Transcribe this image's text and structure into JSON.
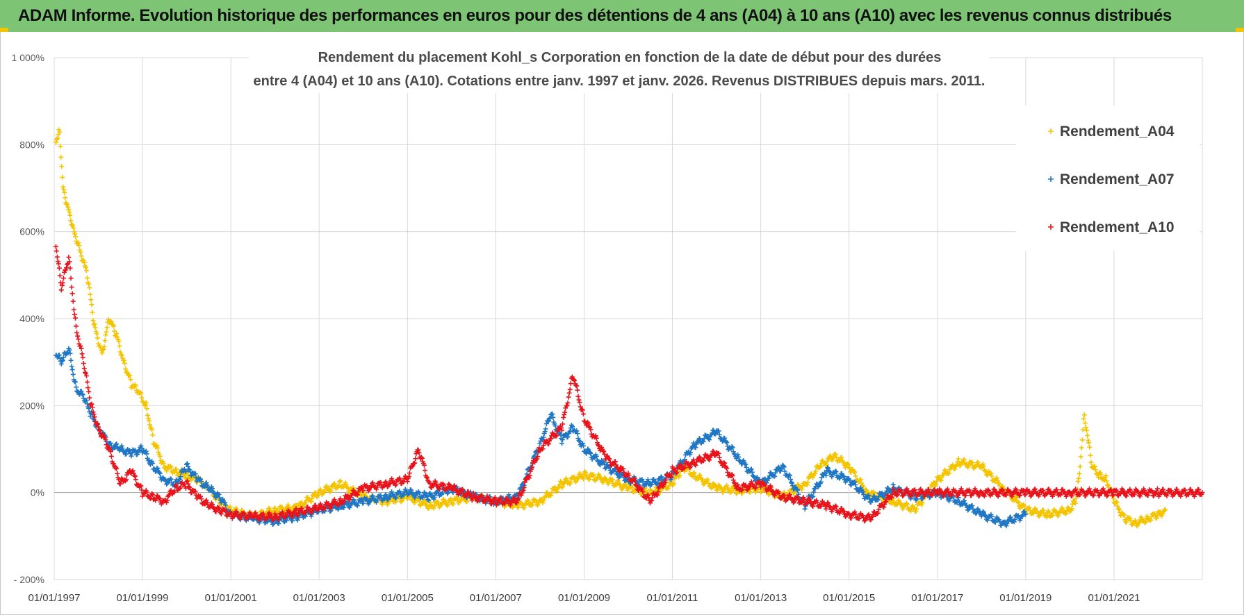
{
  "header": {
    "title": "ADAM Informe. Evolution historique des performances en euros pour des détentions de 4 ans (A04) à 10 ans (A10) avec les revenus connus distribués"
  },
  "chart_data": {
    "type": "scatter",
    "title_line1": "Rendement du placement Kohl_s Corporation en fonction de la date de début pour des durées",
    "title_line2": "entre 4 (A04) et 10 ans (A10).  Cotations entre janv. 1997 et janv. 2026. Revenus DISTRIBUES depuis mars. 2011.",
    "xlabel": "",
    "ylabel": "",
    "x_range": [
      "1997-01-01",
      "2023-01-01"
    ],
    "ylim": [
      -200,
      1000
    ],
    "y_ticks": [
      -200,
      0,
      200,
      400,
      600,
      800,
      1000
    ],
    "y_tick_labels": [
      "- 200%",
      "0%",
      "200%",
      "400%",
      "600%",
      "800%",
      "1 000%"
    ],
    "x_ticks": [
      "1997-01-01",
      "1999-01-01",
      "2001-01-01",
      "2003-01-01",
      "2005-01-01",
      "2007-01-01",
      "2009-01-01",
      "2011-01-01",
      "2013-01-01",
      "2015-01-01",
      "2017-01-01",
      "2019-01-01",
      "2021-01-01"
    ],
    "x_tick_labels": [
      "01/01/1997",
      "01/01/1999",
      "01/01/2001",
      "01/01/2003",
      "01/01/2005",
      "01/01/2007",
      "01/01/2009",
      "01/01/2011",
      "01/01/2013",
      "01/01/2015",
      "01/01/2017",
      "01/01/2019",
      "01/01/2021"
    ],
    "grid": true,
    "legend_position": "top-right",
    "series": [
      {
        "name": "Rendement_A04",
        "color": "#f5c400",
        "marker": "plus",
        "x": [
          "1997-01-15",
          "1997-02-15",
          "1997-03-15",
          "1997-05-01",
          "1997-06-15",
          "1997-08-01",
          "1997-10-01",
          "1997-12-01",
          "1998-02-01",
          "1998-04-01",
          "1998-06-01",
          "1998-08-01",
          "1998-10-01",
          "1998-12-01",
          "1999-02-01",
          "1999-04-01",
          "1999-07-01",
          "1999-10-01",
          "2000-01-01",
          "2000-04-01",
          "2000-07-01",
          "2000-10-01",
          "2001-01-01",
          "2001-07-01",
          "2002-01-01",
          "2002-07-01",
          "2003-01-01",
          "2003-07-01",
          "2004-01-01",
          "2004-07-01",
          "2005-01-01",
          "2005-07-01",
          "2006-01-01",
          "2006-07-01",
          "2007-01-01",
          "2007-07-01",
          "2008-01-01",
          "2008-07-01",
          "2009-01-01",
          "2009-07-01",
          "2010-01-01",
          "2010-07-01",
          "2011-01-01",
          "2011-04-01",
          "2011-07-01",
          "2012-01-01",
          "2012-07-01",
          "2013-01-01",
          "2013-07-01",
          "2014-01-01",
          "2014-05-01",
          "2014-09-01",
          "2015-01-01",
          "2015-06-01",
          "2016-01-01",
          "2016-07-01",
          "2017-01-01",
          "2017-07-01",
          "2018-01-01",
          "2018-07-01",
          "2019-01-01",
          "2019-07-01",
          "2020-01-01",
          "2020-02-15",
          "2020-03-15",
          "2020-05-01",
          "2020-07-01",
          "2020-09-01",
          "2020-11-01",
          "2021-01-01",
          "2021-04-01",
          "2021-07-01",
          "2021-10-01",
          "2022-01-01",
          "2022-03-01"
        ],
        "y": [
          810,
          830,
          700,
          650,
          600,
          560,
          500,
          380,
          320,
          400,
          360,
          300,
          250,
          230,
          200,
          120,
          60,
          50,
          40,
          30,
          10,
          -20,
          -40,
          -55,
          -40,
          -35,
          0,
          20,
          -10,
          -20,
          -10,
          -30,
          -20,
          -10,
          -20,
          -30,
          -20,
          20,
          40,
          30,
          10,
          0,
          20,
          60,
          40,
          10,
          5,
          10,
          -10,
          20,
          60,
          85,
          60,
          0,
          -20,
          -40,
          30,
          70,
          60,
          10,
          -40,
          -50,
          -40,
          -20,
          30,
          180,
          60,
          40,
          30,
          -20,
          -60,
          -70,
          -60,
          -50,
          -40
        ]
      },
      {
        "name": "Rendement_A07",
        "color": "#1f77c4",
        "marker": "plus",
        "x": [
          "1997-01-15",
          "1997-03-01",
          "1997-05-01",
          "1997-07-01",
          "1997-09-01",
          "1997-11-01",
          "1998-01-01",
          "1998-04-01",
          "1998-07-01",
          "1998-10-01",
          "1999-01-01",
          "1999-04-01",
          "1999-07-01",
          "1999-10-01",
          "2000-01-01",
          "2000-04-01",
          "2000-07-01",
          "2000-10-01",
          "2001-01-01",
          "2001-07-01",
          "2002-01-01",
          "2002-07-01",
          "2003-01-01",
          "2003-07-01",
          "2004-01-01",
          "2004-07-01",
          "2005-01-01",
          "2005-07-01",
          "2006-01-01",
          "2006-07-01",
          "2007-01-01",
          "2007-07-01",
          "2008-01-01",
          "2008-04-01",
          "2008-07-01",
          "2008-10-01",
          "2009-01-01",
          "2009-07-01",
          "2010-01-01",
          "2010-07-01",
          "2011-01-01",
          "2011-07-01",
          "2012-01-01",
          "2012-07-01",
          "2013-01-01",
          "2013-07-01",
          "2014-01-01",
          "2014-07-01",
          "2015-01-01",
          "2015-07-01",
          "2016-01-01",
          "2016-07-01",
          "2017-01-01",
          "2017-07-01",
          "2018-01-01",
          "2018-07-01",
          "2019-01-01"
        ],
        "y": [
          320,
          300,
          330,
          240,
          220,
          180,
          150,
          110,
          100,
          90,
          100,
          60,
          30,
          20,
          60,
          30,
          10,
          -10,
          -50,
          -60,
          -65,
          -55,
          -40,
          -30,
          -20,
          -10,
          0,
          -10,
          10,
          -10,
          -20,
          -10,
          110,
          180,
          120,
          150,
          100,
          60,
          30,
          20,
          40,
          110,
          140,
          80,
          20,
          60,
          -30,
          50,
          30,
          -20,
          10,
          -10,
          0,
          -20,
          -50,
          -70,
          -50
        ]
      },
      {
        "name": "Rendement_A10",
        "color": "#e8141c",
        "marker": "plus",
        "x": [
          "1997-01-15",
          "1997-03-01",
          "1997-05-01",
          "1997-07-01",
          "1997-09-01",
          "1997-11-01",
          "1998-01-01",
          "1998-04-01",
          "1998-07-01",
          "1998-10-01",
          "1999-01-01",
          "1999-04-01",
          "1999-07-01",
          "1999-10-01",
          "2000-01-01",
          "2000-04-01",
          "2000-07-01",
          "2000-10-01",
          "2001-01-01",
          "2001-07-01",
          "2002-01-01",
          "2002-07-01",
          "2003-01-01",
          "2003-07-01",
          "2004-01-01",
          "2004-07-01",
          "2005-01-01",
          "2005-04-01",
          "2005-07-01",
          "2006-01-01",
          "2006-07-01",
          "2007-01-01",
          "2007-07-01",
          "2008-01-01",
          "2008-07-01",
          "2008-10-01",
          "2009-01-01",
          "2009-07-01",
          "2010-01-01",
          "2010-07-01",
          "2011-01-01",
          "2011-07-01",
          "2012-01-01",
          "2012-07-01",
          "2013-01-01",
          "2013-07-01",
          "2014-01-01",
          "2014-07-01",
          "2015-01-01",
          "2015-07-01",
          "2016-01-01",
          "2017-01-01",
          "2018-01-01",
          "2019-01-01",
          "2020-01-01",
          "2021-01-01",
          "2022-01-01",
          "2023-01-01"
        ],
        "y": [
          570,
          470,
          540,
          380,
          300,
          200,
          150,
          100,
          20,
          50,
          0,
          -10,
          -20,
          10,
          20,
          -10,
          -30,
          -40,
          -50,
          -55,
          -55,
          -45,
          -35,
          -20,
          10,
          20,
          30,
          100,
          20,
          10,
          -10,
          -20,
          -20,
          100,
          150,
          270,
          170,
          80,
          40,
          -20,
          50,
          70,
          90,
          10,
          20,
          -10,
          -20,
          -30,
          -50,
          -60,
          0,
          0,
          0,
          0,
          0,
          0,
          0,
          0
        ]
      }
    ]
  }
}
